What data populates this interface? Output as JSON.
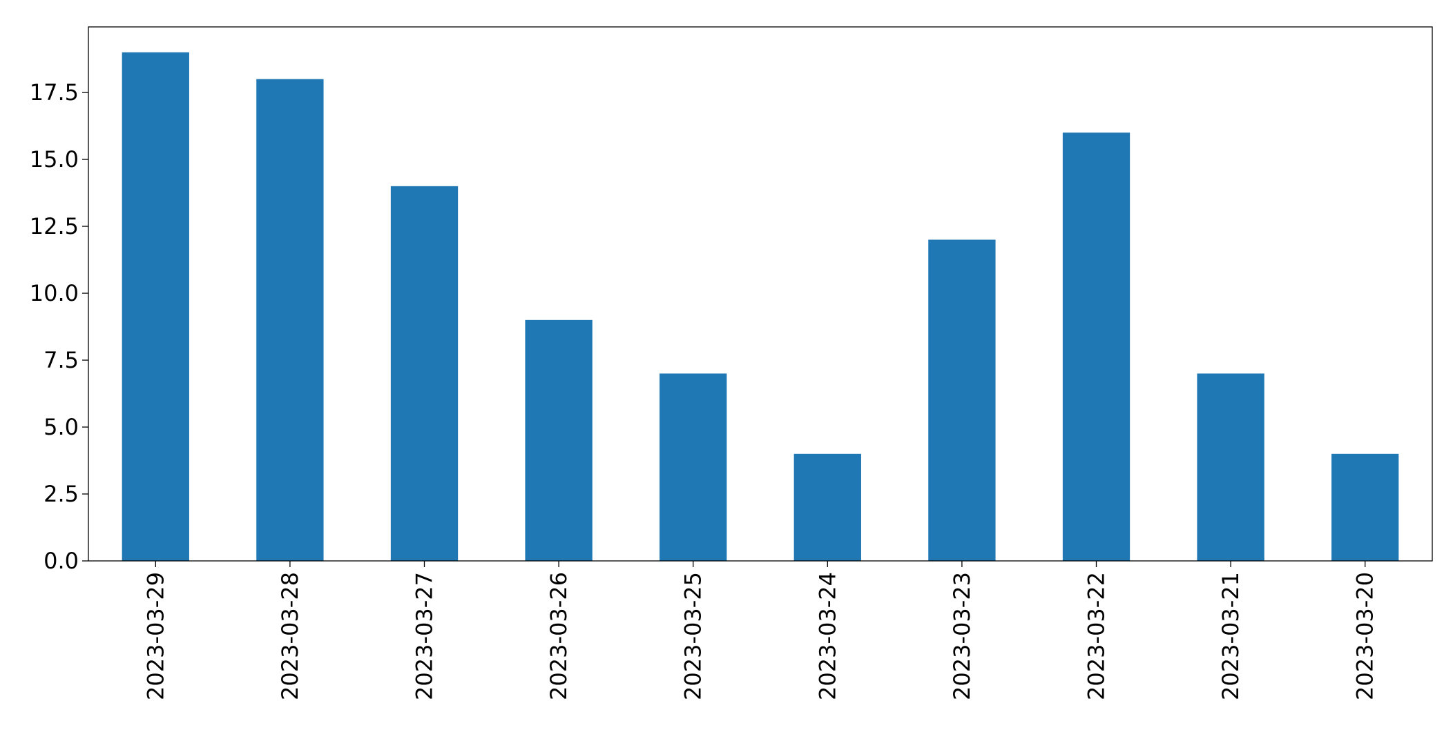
{
  "chart_data": {
    "type": "bar",
    "categories": [
      "2023-03-29",
      "2023-03-28",
      "2023-03-27",
      "2023-03-26",
      "2023-03-25",
      "2023-03-24",
      "2023-03-23",
      "2023-03-22",
      "2023-03-21",
      "2023-03-20"
    ],
    "values": [
      19,
      18,
      14,
      9,
      7,
      4,
      12,
      16,
      7,
      4
    ],
    "color": "#1f77b4",
    "ylim": [
      0,
      19.95
    ],
    "yticks": [
      {
        "value": 0,
        "label": "0.0"
      },
      2.5,
      {
        "value": 5,
        "label": "5.0"
      },
      7.5,
      {
        "value": 10,
        "label": "10.0"
      },
      12.5,
      {
        "value": 15,
        "label": "15.0"
      },
      17.5
    ],
    "grid": false
  }
}
